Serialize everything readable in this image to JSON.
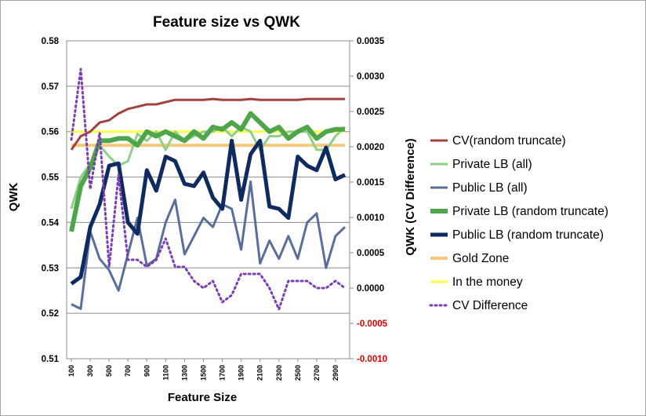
{
  "chart_data": {
    "type": "line",
    "title": "Feature size vs QWK",
    "xlabel": "Feature Size",
    "ylabel": "QWK",
    "y2label": "QWK (CV Difference)",
    "x": [
      100,
      200,
      300,
      400,
      500,
      600,
      700,
      800,
      900,
      1000,
      1100,
      1200,
      1300,
      1400,
      1500,
      1600,
      1700,
      1800,
      1900,
      2000,
      2100,
      2200,
      2300,
      2400,
      2500,
      2600,
      2700,
      2800,
      2900,
      3000
    ],
    "x_tick_labels": [
      "100",
      "300",
      "500",
      "700",
      "900",
      "1100",
      "1300",
      "1500",
      "1700",
      "1900",
      "2100",
      "2300",
      "2500",
      "2700",
      "2900"
    ],
    "ylim": [
      0.51,
      0.58
    ],
    "y_ticks": [
      "0.51",
      "0.52",
      "0.53",
      "0.54",
      "0.55",
      "0.56",
      "0.57",
      "0.58"
    ],
    "y2lim": [
      -0.001,
      0.0035
    ],
    "y2_ticks": [
      "-0.0010",
      "-0.0005",
      "0.0000",
      "0.0005",
      "0.0010",
      "0.0015",
      "0.0020",
      "0.0025",
      "0.0030",
      "0.0035"
    ],
    "grid": true,
    "legend_position": "right",
    "series": [
      {
        "name": "CV(random truncate)",
        "axis": "left",
        "color": "#a0433e",
        "width": 3,
        "style": "solid",
        "values": [
          0.556,
          0.559,
          0.56,
          0.562,
          0.5625,
          0.564,
          0.565,
          0.5655,
          0.566,
          0.566,
          0.5665,
          0.567,
          0.567,
          0.567,
          0.567,
          0.5672,
          0.567,
          0.567,
          0.567,
          0.5672,
          0.567,
          0.567,
          0.567,
          0.567,
          0.567,
          0.5672,
          0.5672,
          0.5672,
          0.5672,
          0.5672
        ]
      },
      {
        "name": "Private LB (all)",
        "axis": "left",
        "color": "#8fcf8a",
        "width": 3,
        "style": "solid",
        "values": [
          0.543,
          0.55,
          0.553,
          0.557,
          0.5545,
          0.5525,
          0.5535,
          0.5595,
          0.558,
          0.56,
          0.556,
          0.56,
          0.558,
          0.559,
          0.56,
          0.56,
          0.561,
          0.559,
          0.561,
          0.56,
          0.556,
          0.559,
          0.559,
          0.56,
          0.56,
          0.56,
          0.556,
          0.556,
          0.559,
          0.561
        ]
      },
      {
        "name": "Public LB (all)",
        "axis": "left",
        "color": "#5a6e9c",
        "width": 3,
        "style": "solid",
        "values": [
          0.522,
          0.521,
          0.538,
          0.532,
          0.5295,
          0.525,
          0.533,
          0.541,
          0.5305,
          0.532,
          0.54,
          0.545,
          0.533,
          0.537,
          0.541,
          0.539,
          0.544,
          0.543,
          0.534,
          0.549,
          0.531,
          0.536,
          0.532,
          0.537,
          0.532,
          0.54,
          0.542,
          0.53,
          0.537,
          0.539
        ]
      },
      {
        "name": "Private LB (random truncate)",
        "axis": "left",
        "color": "#4fa64a",
        "width": 6,
        "style": "solid",
        "values": [
          0.538,
          0.548,
          0.552,
          0.558,
          0.558,
          0.5585,
          0.5585,
          0.557,
          0.56,
          0.559,
          0.56,
          0.559,
          0.558,
          0.56,
          0.5585,
          0.561,
          0.5605,
          0.562,
          0.5605,
          0.564,
          0.562,
          0.56,
          0.561,
          0.5585,
          0.56,
          0.561,
          0.5585,
          0.56,
          0.5605,
          0.5605
        ]
      },
      {
        "name": "Public LB (random truncate)",
        "axis": "left",
        "color": "#0f2a5e",
        "width": 5,
        "style": "solid",
        "values": [
          0.5265,
          0.528,
          0.539,
          0.544,
          0.5525,
          0.553,
          0.54,
          0.5375,
          0.5515,
          0.547,
          0.5545,
          0.5535,
          0.5485,
          0.548,
          0.551,
          0.5455,
          0.543,
          0.558,
          0.545,
          0.555,
          0.558,
          0.5435,
          0.543,
          0.541,
          0.5545,
          0.5525,
          0.5515,
          0.5565,
          0.5495,
          0.5505
        ]
      },
      {
        "name": "Gold Zone",
        "axis": "left",
        "color": "#f5c97d",
        "width": 4,
        "style": "solid",
        "values": [
          0.557,
          0.557,
          0.557,
          0.557,
          0.557,
          0.557,
          0.557,
          0.557,
          0.557,
          0.557,
          0.557,
          0.557,
          0.557,
          0.557,
          0.557,
          0.557,
          0.557,
          0.557,
          0.557,
          0.557,
          0.557,
          0.557,
          0.557,
          0.557,
          0.557,
          0.557,
          0.557,
          0.557,
          0.557,
          0.557
        ]
      },
      {
        "name": "In the money",
        "axis": "left",
        "color": "#ffff4a",
        "width": 3,
        "style": "solid",
        "values": [
          0.56,
          0.56,
          0.56,
          0.56,
          0.56,
          0.56,
          0.56,
          0.56,
          0.56,
          0.56,
          0.56,
          0.56,
          0.56,
          0.56,
          0.56,
          0.56,
          0.56,
          0.56,
          0.56,
          0.56,
          0.56,
          0.56,
          0.56,
          0.56,
          0.56,
          0.56,
          0.56,
          0.56,
          0.56,
          0.56
        ]
      },
      {
        "name": "CV Difference",
        "axis": "right",
        "color": "#7a3fb0",
        "width": 3,
        "style": "dotted",
        "values": [
          0.0021,
          0.0031,
          0.0014,
          0.0022,
          0.0003,
          0.0016,
          0.0004,
          0.0004,
          0.0003,
          0.0004,
          0.0007,
          0.0003,
          0.0003,
          0.0001,
          0.0,
          0.0001,
          -0.0002,
          -0.0001,
          0.0002,
          0.0002,
          0.0002,
          0.0,
          -0.0003,
          0.0001,
          0.0001,
          0.0001,
          0.0,
          0.0,
          0.0001,
          0.0
        ]
      }
    ]
  }
}
